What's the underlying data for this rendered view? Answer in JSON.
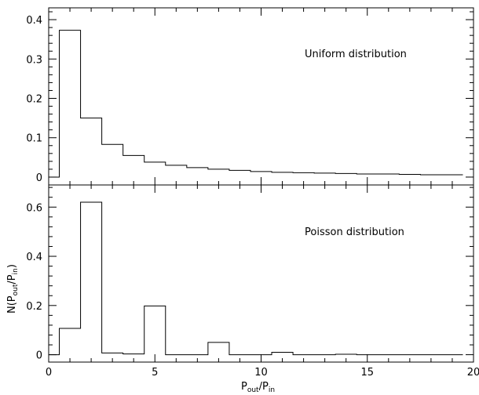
{
  "chart_data": [
    {
      "type": "histogram",
      "panel": "top",
      "annotation": "Uniform distribution",
      "bin_width": 1,
      "x_start": 0,
      "values": [
        0,
        0.373,
        0.15,
        0.083,
        0.055,
        0.038,
        0.03,
        0.024,
        0.02,
        0.017,
        0.014,
        0.012,
        0.011,
        0.01,
        0.009,
        0.008,
        0.008,
        0.007,
        0.006,
        0.006
      ],
      "xlim": [
        0,
        20
      ],
      "ylim": [
        -0.02,
        0.43
      ],
      "yticks": [
        0,
        0.1,
        0.2,
        0.3,
        0.4
      ],
      "ytick_labels": [
        "0",
        "0.1",
        "0.2",
        "0.3",
        "0.4"
      ]
    },
    {
      "type": "histogram",
      "panel": "bottom",
      "annotation": "Poisson distribution",
      "bin_width": 1,
      "x_start": 0,
      "values": [
        0,
        0.107,
        0.62,
        0.007,
        0.003,
        0.198,
        0.0,
        0.0,
        0.05,
        0.0,
        0.0,
        0.01,
        0.0,
        0.0,
        0.002,
        0.0,
        0.0,
        0.0,
        0.0,
        0.0
      ],
      "xlim": [
        0,
        20
      ],
      "ylim": [
        -0.03,
        0.69
      ],
      "yticks": [
        0,
        0.2,
        0.4,
        0.6
      ],
      "ytick_labels": [
        "0",
        "0.2",
        "0.4",
        "0.6"
      ],
      "xticks": [
        0,
        5,
        10,
        15,
        20
      ],
      "xtick_labels": [
        "0",
        "5",
        "10",
        "15",
        "20"
      ]
    }
  ],
  "axes_labels": {
    "ylabel_main": "N(P",
    "ylabel_sub1": "out",
    "ylabel_mid": "/P",
    "ylabel_sub2": "in",
    "ylabel_end": ")",
    "xlabel_main": "P",
    "xlabel_sub1": "out",
    "xlabel_mid": "/P",
    "xlabel_sub2": "in"
  }
}
